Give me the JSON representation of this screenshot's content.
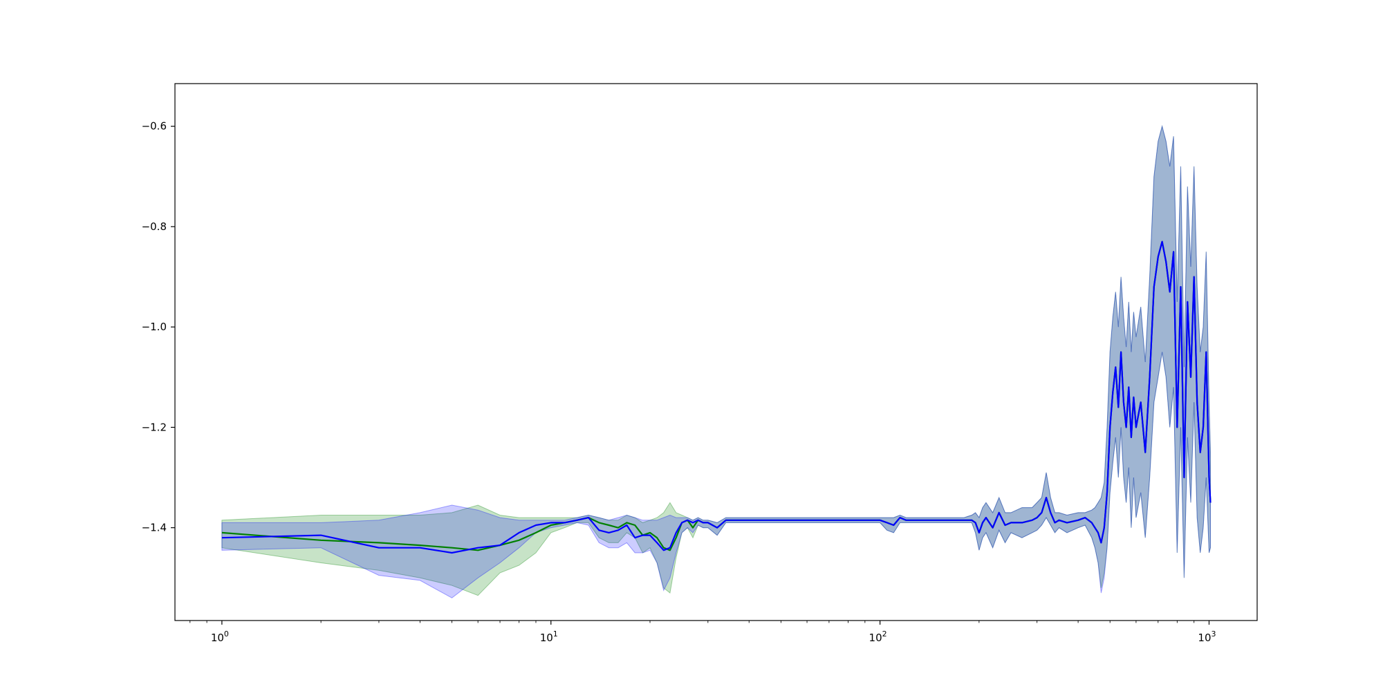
{
  "chart_data": {
    "type": "line",
    "title": "",
    "xlabel": "",
    "ylabel": "",
    "xscale": "log",
    "xlim": [
      0.72,
      1400
    ],
    "ylim": [
      -1.585,
      -0.515
    ],
    "grid": false,
    "legend": "none",
    "x_ticks": [
      {
        "value": 1,
        "base": "10",
        "exp": "0"
      },
      {
        "value": 10,
        "base": "10",
        "exp": "1"
      },
      {
        "value": 100,
        "base": "10",
        "exp": "2"
      },
      {
        "value": 1000,
        "base": "10",
        "exp": "3"
      }
    ],
    "y_ticks": [
      {
        "value": -0.6,
        "label": "−0.6"
      },
      {
        "value": -0.8,
        "label": "−0.8"
      },
      {
        "value": -1.0,
        "label": "−1.0"
      },
      {
        "value": -1.2,
        "label": "−1.2"
      },
      {
        "value": -1.4,
        "label": "−1.4"
      }
    ],
    "series": [
      {
        "color": "#008000",
        "band_color": "#008000",
        "band_opacity": 0.22,
        "x": [
          1,
          2,
          3,
          4,
          5,
          6,
          7,
          8,
          9,
          10,
          11,
          12,
          13,
          14,
          15,
          16,
          17,
          18,
          19,
          20,
          21,
          22,
          23,
          24,
          25,
          26,
          27,
          28,
          29,
          30,
          32,
          34,
          36,
          40,
          50,
          60,
          70,
          80,
          90,
          100,
          105,
          110,
          115,
          120,
          130,
          150,
          170,
          180,
          190,
          195,
          200,
          205,
          210,
          220,
          230,
          240,
          250,
          270,
          290,
          300,
          310,
          320,
          330,
          340,
          350,
          370,
          400,
          420,
          440,
          450,
          460,
          470,
          480,
          490,
          500,
          510,
          520,
          530,
          540,
          550,
          560,
          570,
          580,
          590,
          600,
          620,
          640,
          660,
          680,
          700,
          720,
          740,
          760,
          780,
          800,
          820,
          840,
          860,
          880,
          900,
          920,
          940,
          960,
          980,
          1000,
          1010
        ],
        "mean": [
          -1.41,
          -1.425,
          -1.43,
          -1.435,
          -1.44,
          -1.445,
          -1.435,
          -1.425,
          -1.41,
          -1.395,
          -1.39,
          -1.385,
          -1.38,
          -1.39,
          -1.395,
          -1.4,
          -1.39,
          -1.395,
          -1.415,
          -1.41,
          -1.42,
          -1.44,
          -1.445,
          -1.42,
          -1.39,
          -1.385,
          -1.4,
          -1.385,
          -1.39,
          -1.39,
          -1.4,
          -1.385,
          -1.385,
          -1.385,
          -1.385,
          -1.385,
          -1.385,
          -1.385,
          -1.385,
          -1.385,
          -1.39,
          -1.395,
          -1.38,
          -1.385,
          -1.385,
          -1.385,
          -1.385,
          -1.385,
          -1.385,
          -1.39,
          -1.41,
          -1.39,
          -1.38,
          -1.4,
          -1.37,
          -1.395,
          -1.39,
          -1.39,
          -1.385,
          -1.38,
          -1.37,
          -1.34,
          -1.37,
          -1.39,
          -1.385,
          -1.39,
          -1.385,
          -1.38,
          -1.39,
          -1.4,
          -1.41,
          -1.43,
          -1.4,
          -1.33,
          -1.2,
          -1.13,
          -1.08,
          -1.16,
          -1.05,
          -1.15,
          -1.2,
          -1.12,
          -1.22,
          -1.14,
          -1.2,
          -1.15,
          -1.25,
          -1.1,
          -0.92,
          -0.86,
          -0.83,
          -0.87,
          -0.93,
          -0.85,
          -1.2,
          -0.92,
          -1.3,
          -0.95,
          -1.1,
          -0.9,
          -1.15,
          -1.25,
          -1.2,
          -1.05,
          -1.3,
          -1.35
        ],
        "lower": [
          -1.44,
          -1.47,
          -1.485,
          -1.5,
          -1.515,
          -1.535,
          -1.49,
          -1.475,
          -1.45,
          -1.41,
          -1.4,
          -1.39,
          -1.39,
          -1.42,
          -1.43,
          -1.43,
          -1.41,
          -1.42,
          -1.45,
          -1.44,
          -1.47,
          -1.52,
          -1.53,
          -1.46,
          -1.41,
          -1.4,
          -1.42,
          -1.395,
          -1.4,
          -1.4,
          -1.415,
          -1.39,
          -1.39,
          -1.39,
          -1.39,
          -1.39,
          -1.39,
          -1.39,
          -1.39,
          -1.39,
          -1.405,
          -1.41,
          -1.39,
          -1.39,
          -1.39,
          -1.39,
          -1.39,
          -1.39,
          -1.39,
          -1.41,
          -1.445,
          -1.42,
          -1.41,
          -1.44,
          -1.405,
          -1.43,
          -1.41,
          -1.42,
          -1.41,
          -1.405,
          -1.395,
          -1.38,
          -1.395,
          -1.41,
          -1.4,
          -1.41,
          -1.4,
          -1.395,
          -1.42,
          -1.44,
          -1.47,
          -1.52,
          -1.49,
          -1.44,
          -1.33,
          -1.27,
          -1.22,
          -1.3,
          -1.2,
          -1.3,
          -1.35,
          -1.28,
          -1.4,
          -1.3,
          -1.38,
          -1.33,
          -1.42,
          -1.3,
          -1.15,
          -1.1,
          -1.05,
          -1.1,
          -1.2,
          -1.12,
          -1.45,
          -1.2,
          -1.5,
          -1.22,
          -1.35,
          -1.15,
          -1.38,
          -1.45,
          -1.4,
          -1.3,
          -1.45,
          -1.44
        ],
        "upper": [
          -1.385,
          -1.375,
          -1.375,
          -1.375,
          -1.37,
          -1.355,
          -1.375,
          -1.38,
          -1.38,
          -1.38,
          -1.38,
          -1.38,
          -1.375,
          -1.38,
          -1.385,
          -1.385,
          -1.375,
          -1.38,
          -1.39,
          -1.385,
          -1.38,
          -1.37,
          -1.35,
          -1.37,
          -1.375,
          -1.38,
          -1.385,
          -1.38,
          -1.385,
          -1.385,
          -1.39,
          -1.38,
          -1.38,
          -1.38,
          -1.38,
          -1.38,
          -1.38,
          -1.38,
          -1.38,
          -1.38,
          -1.38,
          -1.38,
          -1.375,
          -1.38,
          -1.38,
          -1.38,
          -1.38,
          -1.38,
          -1.375,
          -1.37,
          -1.38,
          -1.36,
          -1.35,
          -1.37,
          -1.34,
          -1.37,
          -1.37,
          -1.36,
          -1.36,
          -1.35,
          -1.34,
          -1.29,
          -1.34,
          -1.37,
          -1.37,
          -1.375,
          -1.37,
          -1.37,
          -1.365,
          -1.36,
          -1.35,
          -1.34,
          -1.31,
          -1.2,
          -1.05,
          -0.98,
          -0.93,
          -1.0,
          -0.9,
          -0.98,
          -1.04,
          -0.95,
          -1.05,
          -0.97,
          -1.02,
          -0.96,
          -1.07,
          -0.9,
          -0.7,
          -0.63,
          -0.6,
          -0.63,
          -0.68,
          -0.62,
          -0.95,
          -0.68,
          -1.08,
          -0.72,
          -0.88,
          -0.68,
          -0.92,
          -1.05,
          -1.0,
          -0.85,
          -1.15,
          -1.25
        ]
      },
      {
        "color": "#0000ff",
        "band_color": "#0000ff",
        "band_opacity": 0.2,
        "x": [
          1,
          2,
          3,
          4,
          5,
          6,
          7,
          8,
          9,
          10,
          11,
          12,
          13,
          14,
          15,
          16,
          17,
          18,
          19,
          20,
          21,
          22,
          23,
          24,
          25,
          26,
          27,
          28,
          29,
          30,
          32,
          34,
          36,
          40,
          50,
          60,
          70,
          80,
          90,
          100,
          105,
          110,
          115,
          120,
          130,
          150,
          170,
          180,
          190,
          195,
          200,
          205,
          210,
          220,
          230,
          240,
          250,
          270,
          290,
          300,
          310,
          320,
          330,
          340,
          350,
          370,
          400,
          420,
          440,
          450,
          460,
          470,
          480,
          490,
          500,
          510,
          520,
          530,
          540,
          550,
          560,
          570,
          580,
          590,
          600,
          620,
          640,
          660,
          680,
          700,
          720,
          740,
          760,
          780,
          800,
          820,
          840,
          860,
          880,
          900,
          920,
          940,
          960,
          980,
          1000,
          1010
        ],
        "mean": [
          -1.42,
          -1.415,
          -1.44,
          -1.44,
          -1.45,
          -1.44,
          -1.435,
          -1.41,
          -1.395,
          -1.39,
          -1.39,
          -1.385,
          -1.38,
          -1.405,
          -1.41,
          -1.405,
          -1.395,
          -1.42,
          -1.415,
          -1.415,
          -1.43,
          -1.445,
          -1.44,
          -1.41,
          -1.39,
          -1.385,
          -1.39,
          -1.385,
          -1.39,
          -1.39,
          -1.4,
          -1.385,
          -1.385,
          -1.385,
          -1.385,
          -1.385,
          -1.385,
          -1.385,
          -1.385,
          -1.385,
          -1.39,
          -1.395,
          -1.38,
          -1.385,
          -1.385,
          -1.385,
          -1.385,
          -1.385,
          -1.385,
          -1.39,
          -1.41,
          -1.39,
          -1.38,
          -1.4,
          -1.37,
          -1.395,
          -1.39,
          -1.39,
          -1.385,
          -1.38,
          -1.37,
          -1.34,
          -1.37,
          -1.39,
          -1.385,
          -1.39,
          -1.385,
          -1.38,
          -1.39,
          -1.4,
          -1.41,
          -1.43,
          -1.4,
          -1.33,
          -1.2,
          -1.13,
          -1.08,
          -1.16,
          -1.05,
          -1.15,
          -1.2,
          -1.12,
          -1.22,
          -1.14,
          -1.2,
          -1.15,
          -1.25,
          -1.1,
          -0.92,
          -0.86,
          -0.83,
          -0.87,
          -0.93,
          -0.85,
          -1.2,
          -0.92,
          -1.3,
          -0.95,
          -1.1,
          -0.9,
          -1.15,
          -1.25,
          -1.2,
          -1.05,
          -1.3,
          -1.35
        ],
        "lower": [
          -1.445,
          -1.44,
          -1.495,
          -1.505,
          -1.54,
          -1.5,
          -1.47,
          -1.44,
          -1.41,
          -1.4,
          -1.395,
          -1.39,
          -1.395,
          -1.43,
          -1.44,
          -1.44,
          -1.43,
          -1.45,
          -1.45,
          -1.445,
          -1.47,
          -1.525,
          -1.5,
          -1.45,
          -1.41,
          -1.4,
          -1.41,
          -1.395,
          -1.4,
          -1.4,
          -1.415,
          -1.39,
          -1.39,
          -1.39,
          -1.39,
          -1.39,
          -1.39,
          -1.39,
          -1.39,
          -1.39,
          -1.405,
          -1.41,
          -1.39,
          -1.39,
          -1.39,
          -1.39,
          -1.39,
          -1.39,
          -1.39,
          -1.41,
          -1.445,
          -1.42,
          -1.41,
          -1.44,
          -1.405,
          -1.43,
          -1.41,
          -1.42,
          -1.41,
          -1.405,
          -1.395,
          -1.38,
          -1.395,
          -1.41,
          -1.4,
          -1.41,
          -1.4,
          -1.395,
          -1.42,
          -1.44,
          -1.47,
          -1.53,
          -1.5,
          -1.44,
          -1.33,
          -1.27,
          -1.22,
          -1.3,
          -1.2,
          -1.3,
          -1.35,
          -1.28,
          -1.4,
          -1.3,
          -1.38,
          -1.33,
          -1.42,
          -1.3,
          -1.15,
          -1.1,
          -1.05,
          -1.1,
          -1.2,
          -1.12,
          -1.45,
          -1.2,
          -1.5,
          -1.22,
          -1.35,
          -1.15,
          -1.38,
          -1.45,
          -1.4,
          -1.3,
          -1.45,
          -1.44
        ],
        "upper": [
          -1.39,
          -1.39,
          -1.385,
          -1.37,
          -1.355,
          -1.365,
          -1.38,
          -1.385,
          -1.385,
          -1.385,
          -1.385,
          -1.38,
          -1.375,
          -1.38,
          -1.385,
          -1.38,
          -1.375,
          -1.38,
          -1.385,
          -1.385,
          -1.385,
          -1.38,
          -1.375,
          -1.38,
          -1.38,
          -1.38,
          -1.385,
          -1.38,
          -1.385,
          -1.385,
          -1.39,
          -1.38,
          -1.38,
          -1.38,
          -1.38,
          -1.38,
          -1.38,
          -1.38,
          -1.38,
          -1.38,
          -1.38,
          -1.38,
          -1.375,
          -1.38,
          -1.38,
          -1.38,
          -1.38,
          -1.38,
          -1.375,
          -1.37,
          -1.38,
          -1.36,
          -1.35,
          -1.37,
          -1.34,
          -1.37,
          -1.37,
          -1.36,
          -1.36,
          -1.35,
          -1.34,
          -1.29,
          -1.34,
          -1.37,
          -1.37,
          -1.375,
          -1.37,
          -1.37,
          -1.365,
          -1.36,
          -1.35,
          -1.34,
          -1.31,
          -1.2,
          -1.05,
          -0.98,
          -0.93,
          -1.0,
          -0.9,
          -0.98,
          -1.04,
          -0.95,
          -1.05,
          -0.97,
          -1.02,
          -0.96,
          -1.07,
          -0.9,
          -0.7,
          -0.63,
          -0.6,
          -0.63,
          -0.68,
          -0.62,
          -0.95,
          -0.68,
          -1.08,
          -0.72,
          -0.88,
          -0.68,
          -0.92,
          -1.05,
          -1.0,
          -0.85,
          -1.15,
          -1.25
        ]
      }
    ]
  }
}
